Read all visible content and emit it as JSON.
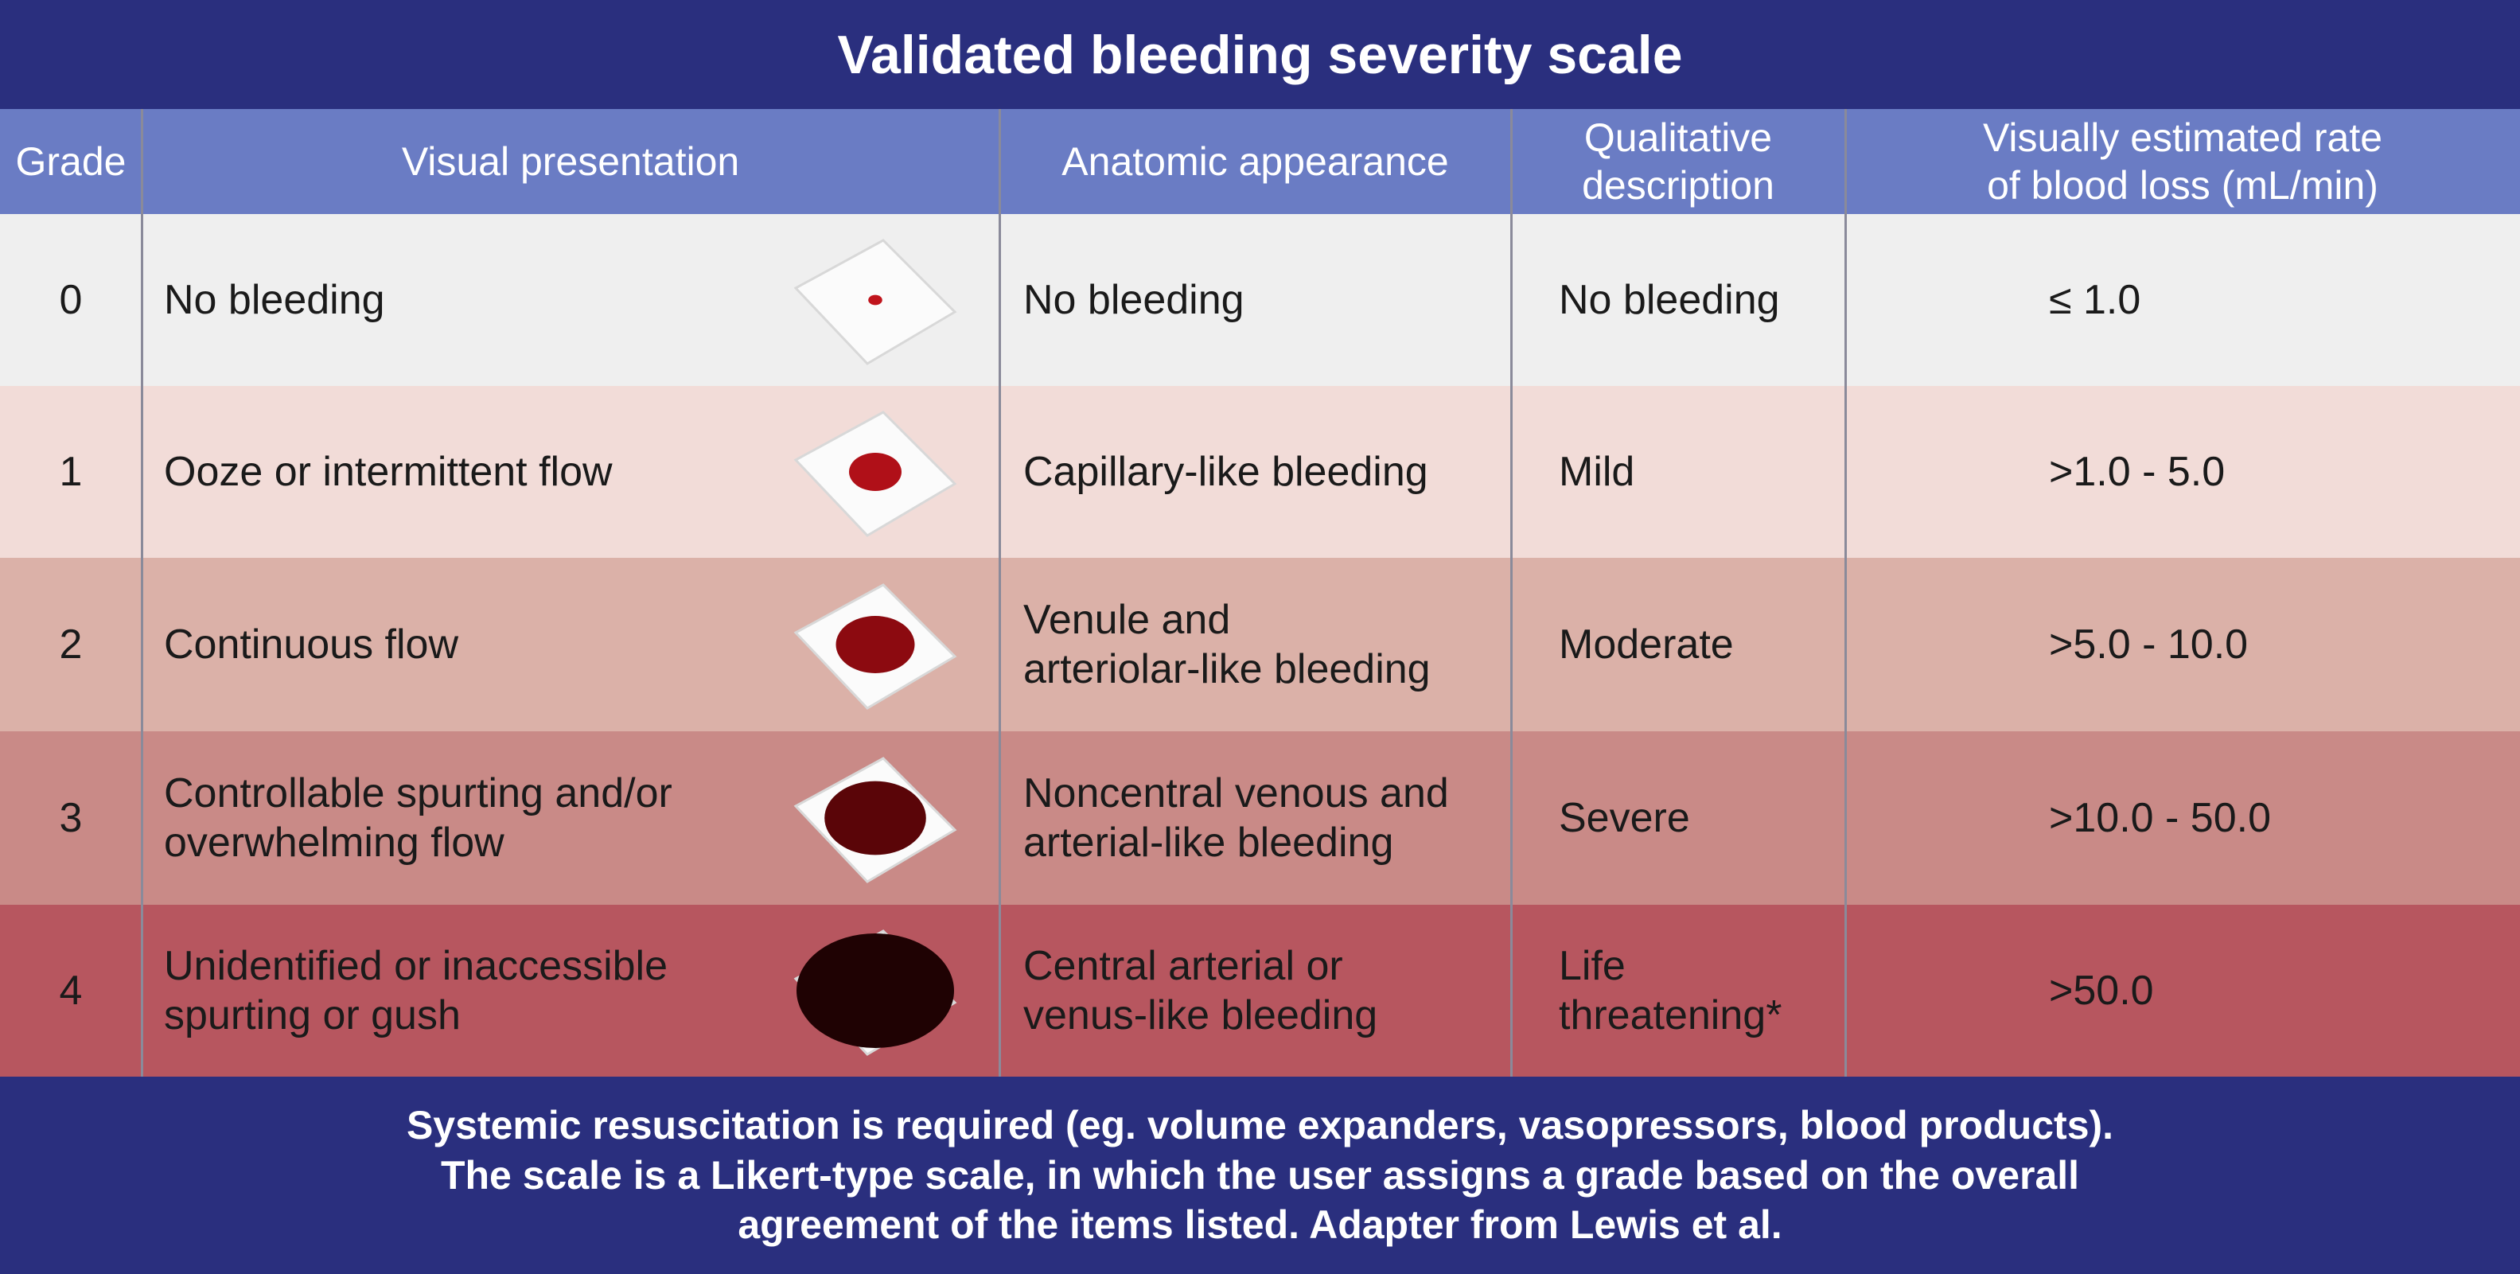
{
  "title": "Validated bleeding severity scale",
  "header": [
    [
      "Grade"
    ],
    [
      "Visual presentation"
    ],
    [
      "Anatomic appearance"
    ],
    [
      "Qualitative",
      "description"
    ],
    [
      "Visually estimated rate",
      "of blood loss (mL/min)"
    ]
  ],
  "table": {
    "rows": [
      [
        [
          "0"
        ],
        [
          "No bleeding"
        ],
        [
          "No bleeding"
        ],
        [
          "No bleeding"
        ],
        [
          "≤ 1.0"
        ]
      ],
      [
        [
          "1"
        ],
        [
          "Ooze or intermittent flow"
        ],
        [
          "Capillary-like bleeding"
        ],
        [
          "Mild"
        ],
        [
          ">1.0 - 5.0"
        ]
      ],
      [
        [
          "2"
        ],
        [
          "Continuous flow"
        ],
        [
          "Venule and",
          "arteriolar-like bleeding"
        ],
        [
          "Moderate"
        ],
        [
          ">5.0 - 10.0"
        ]
      ],
      [
        [
          "3"
        ],
        [
          "Controllable spurting and/or",
          "overwhelming flow"
        ],
        [
          "Noncentral venous and",
          "arterial-like bleeding"
        ],
        [
          "Severe"
        ],
        [
          ">10.0 - 50.0"
        ]
      ],
      [
        [
          "4"
        ],
        [
          "Unidentified or inaccessible",
          "spurting or gush"
        ],
        [
          "Central arterial or",
          "venus-like bleeding"
        ],
        [
          "Life",
          "threatening*"
        ],
        [
          ">50.0"
        ]
      ]
    ]
  },
  "footer": [
    "Systemic resuscitation is required (eg. volume expanders, vasopressors, blood products).",
    "The scale is a Likert-type scale, in which the user assigns a grade based on the overall",
    "agreement of the items listed. Adapter from Lewis et al."
  ]
}
